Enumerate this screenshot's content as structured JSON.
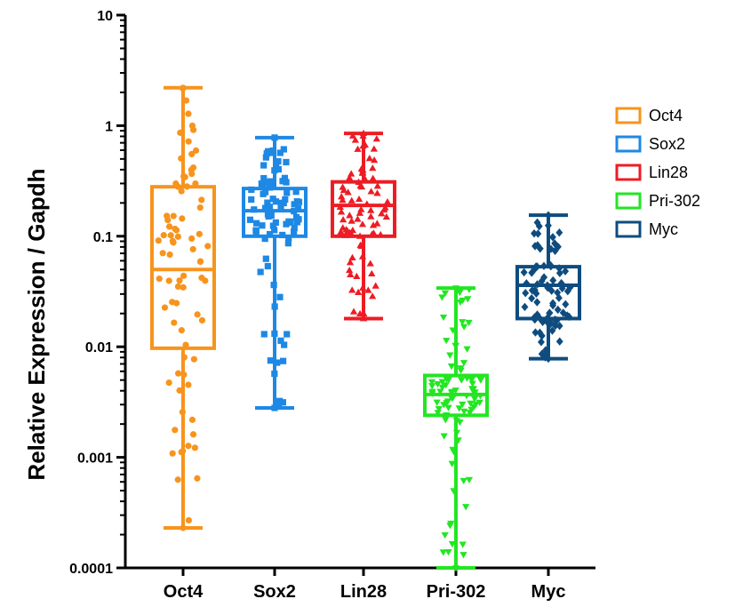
{
  "chart_data": {
    "type": "box",
    "ylabel": "Relative Expression / Gapdh",
    "yscale": "log",
    "ylim": [
      0.0001,
      10
    ],
    "yticks": [
      {
        "value": 10,
        "label": "10"
      },
      {
        "value": 1,
        "label": "1"
      },
      {
        "value": 0.1,
        "label": "0.1"
      },
      {
        "value": 0.01,
        "label": "0.01"
      },
      {
        "value": 0.001,
        "label": "0.001"
      },
      {
        "value": 0.0001,
        "label": "0.0001"
      }
    ],
    "categories": [
      "Oct4",
      "Sox2",
      "Lin28",
      "Pri-302",
      "Myc"
    ],
    "legend_position": "right",
    "series": [
      {
        "name": "Oct4",
        "color": "#F7941D",
        "marker": "circle",
        "min": 0.00023,
        "q1": 0.0097,
        "median": 0.05,
        "q3": 0.28,
        "max": 2.2,
        "n": 80
      },
      {
        "name": "Sox2",
        "color": "#1E88E5",
        "marker": "square",
        "min": 0.0028,
        "q1": 0.1,
        "median": 0.17,
        "q3": 0.27,
        "max": 0.78,
        "n": 90
      },
      {
        "name": "Lin28",
        "color": "#ED1C24",
        "marker": "triangle-up",
        "min": 0.018,
        "q1": 0.1,
        "median": 0.19,
        "q3": 0.31,
        "max": 0.85,
        "n": 85
      },
      {
        "name": "Pri-302",
        "color": "#22E622",
        "marker": "triangle-down",
        "min": 0.0001,
        "q1": 0.0024,
        "median": 0.0037,
        "q3": 0.0055,
        "max": 0.034,
        "n": 90
      },
      {
        "name": "Myc",
        "color": "#0E4C7F",
        "marker": "diamond",
        "min": 0.0078,
        "q1": 0.018,
        "median": 0.036,
        "q3": 0.053,
        "max": 0.155,
        "n": 80
      }
    ]
  }
}
